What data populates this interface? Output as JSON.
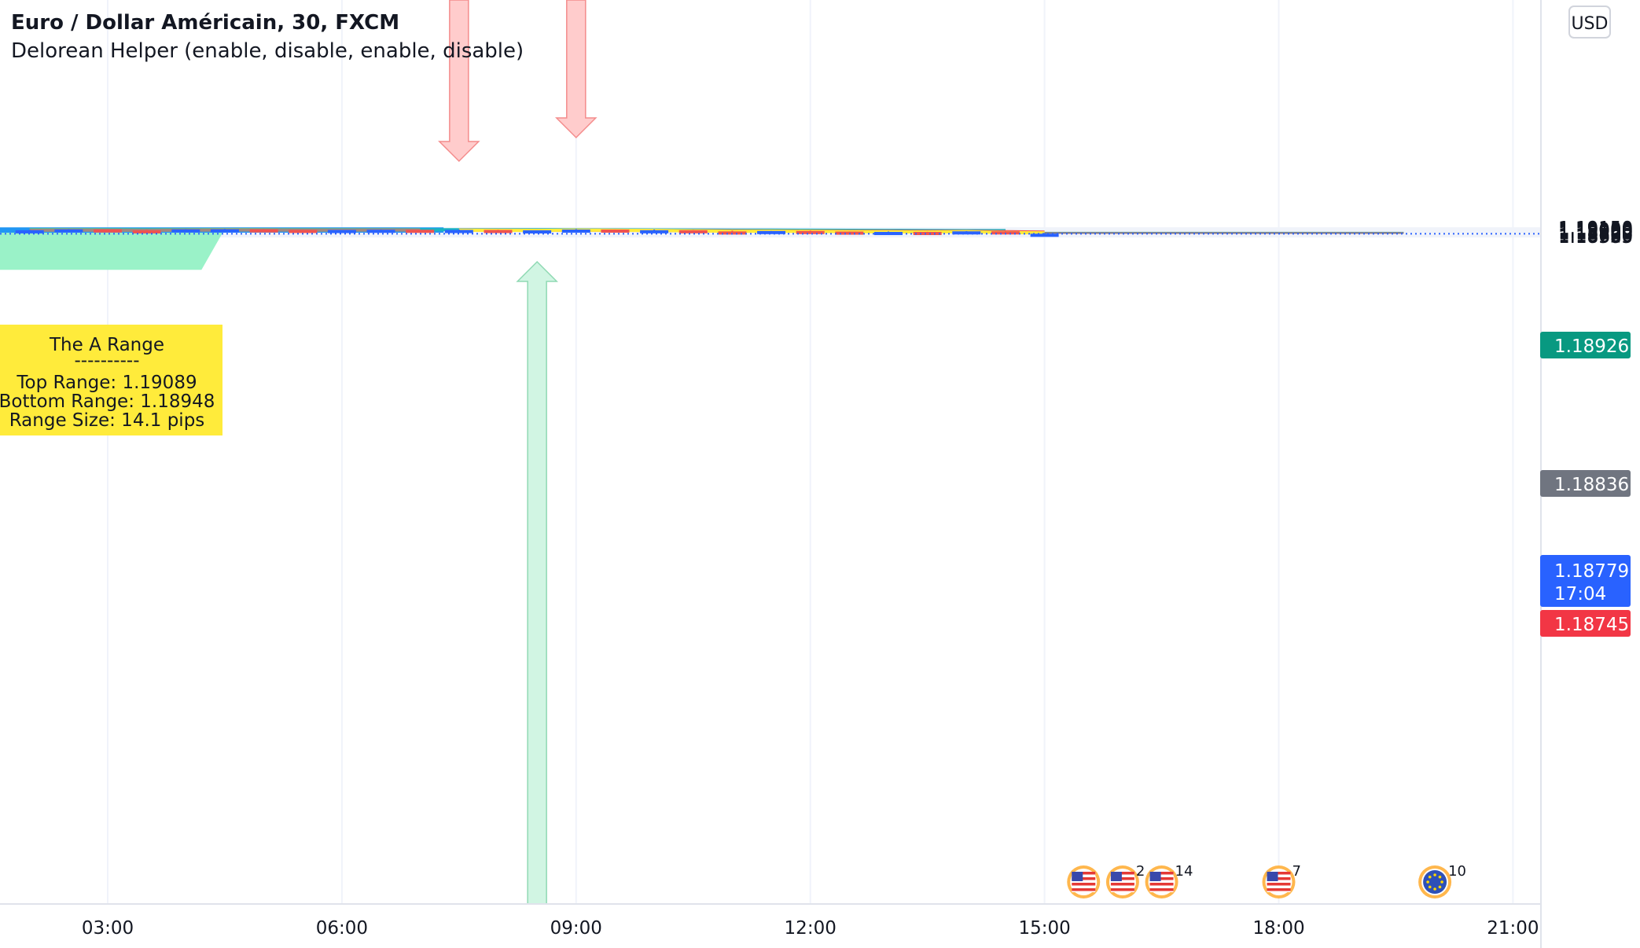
{
  "header": {
    "title": "Euro / Dollar Américain, 30, FXCM",
    "indicator": "Delorean Helper (enable, disable, enable, disable)"
  },
  "currency": "USD",
  "range_box": {
    "title": "The A Range",
    "separator": "----------",
    "top_label": "Top Range: 1.19089",
    "bottom_label": "Bottom Range: 1.18948",
    "size_label": "Range Size: 14.1 pips",
    "top": 1.19089,
    "bottom": 1.18948
  },
  "price_tags": {
    "target": "1.18926",
    "entry": "1.18836",
    "last_price": "1.18779",
    "countdown": "17:04",
    "stop": "1.18745"
  },
  "colors": {
    "bull": "#2962ff",
    "bear": "#ef5350",
    "range_fill": "#9af2c8",
    "range_line": "#2196f3",
    "ema_slow": "#1ab4c2",
    "ema_red": "#ef5350",
    "ema_yellow": "#ffeb3b",
    "ema_green": "#9ae665",
    "ema_brown": "#a1887f",
    "target_zone": "#cce9e7",
    "stop_zone": "#fdd7d7",
    "tag_target": "#089981",
    "tag_entry": "#707580",
    "tag_last": "#2962ff",
    "tag_stop": "#f23645",
    "label_yellow": "#ffeb3b"
  },
  "events": [
    {
      "icon": "us-flag-icon",
      "count": ""
    },
    {
      "icon": "us-flag-icon",
      "count": "2"
    },
    {
      "icon": "us-flag-icon",
      "count": "14"
    },
    {
      "icon": "us-flag-icon",
      "count": "7"
    },
    {
      "icon": "eu-flag-icon",
      "count": "10"
    }
  ],
  "chart_data": {
    "type": "candlestick",
    "symbol": "Euro / Dollar Américain",
    "interval": "30",
    "y_ticks": [
      "1.19150",
      "1.19100",
      "1.19050",
      "1.19000",
      "1.18950",
      "1.18900",
      "1.18860",
      "1.18820",
      "1.18700",
      "1.18660",
      "1.18620",
      "1.18585"
    ],
    "x_ticks": [
      "03:00",
      "06:00",
      "09:00",
      "12:00",
      "15:00",
      "18:00",
      "21:00"
    ],
    "candles": [
      {
        "time": "02:00",
        "open": 1.19,
        "high": 1.19028,
        "low": 1.18985,
        "close": 1.19005
      },
      {
        "time": "02:30",
        "open": 1.19003,
        "high": 1.19067,
        "low": 1.18982,
        "close": 1.1906
      },
      {
        "time": "03:00",
        "open": 1.1906,
        "high": 1.19067,
        "low": 1.1899,
        "close": 1.19003
      },
      {
        "time": "03:30",
        "open": 1.19003,
        "high": 1.19025,
        "low": 1.18965,
        "close": 1.18991
      },
      {
        "time": "04:00",
        "open": 1.18991,
        "high": 1.19065,
        "low": 1.18983,
        "close": 1.1906
      },
      {
        "time": "04:30",
        "open": 1.19061,
        "high": 1.19089,
        "low": 1.1905,
        "close": 1.19065
      },
      {
        "time": "05:00",
        "open": 1.19065,
        "high": 1.19067,
        "low": 1.1902,
        "close": 1.1903
      },
      {
        "time": "05:30",
        "open": 1.19029,
        "high": 1.19029,
        "low": 1.18979,
        "close": 1.18998
      },
      {
        "time": "06:00",
        "open": 1.18998,
        "high": 1.19024,
        "low": 1.18987,
        "close": 1.19024
      },
      {
        "time": "06:30",
        "open": 1.19024,
        "high": 1.19045,
        "low": 1.19009,
        "close": 1.19037
      },
      {
        "time": "07:00",
        "open": 1.19037,
        "high": 1.19042,
        "low": 1.18993,
        "close": 1.18996
      },
      {
        "time": "07:30",
        "open": 1.18997,
        "high": 1.1905,
        "low": 1.18997,
        "close": 1.19025
      },
      {
        "time": "08:00",
        "open": 1.19025,
        "high": 1.19038,
        "low": 1.18958,
        "close": 1.18958
      },
      {
        "time": "08:30",
        "open": 1.18958,
        "high": 1.19,
        "low": 1.18943,
        "close": 1.19
      },
      {
        "time": "09:00",
        "open": 1.19,
        "high": 1.1908,
        "low": 1.18985,
        "close": 1.1905
      },
      {
        "time": "09:30",
        "open": 1.1905,
        "high": 1.19052,
        "low": 1.18948,
        "close": 1.18948
      },
      {
        "time": "10:00",
        "open": 1.18948,
        "high": 1.1905,
        "low": 1.18924,
        "close": 1.19007
      },
      {
        "time": "10:30",
        "open": 1.19007,
        "high": 1.19011,
        "low": 1.1886,
        "close": 1.1893
      },
      {
        "time": "11:00",
        "open": 1.1893,
        "high": 1.1898,
        "low": 1.18855,
        "close": 1.1886
      },
      {
        "time": "11:30",
        "open": 1.1886,
        "high": 1.18957,
        "low": 1.1886,
        "close": 1.18957
      },
      {
        "time": "12:00",
        "open": 1.18957,
        "high": 1.1898,
        "low": 1.189,
        "close": 1.1892
      },
      {
        "time": "12:30",
        "open": 1.1892,
        "high": 1.18925,
        "low": 1.1883,
        "close": 1.18843
      },
      {
        "time": "13:00",
        "open": 1.18843,
        "high": 1.18924,
        "low": 1.18843,
        "close": 1.18896
      },
      {
        "time": "13:30",
        "open": 1.18896,
        "high": 1.18906,
        "low": 1.18823,
        "close": 1.18855
      },
      {
        "time": "14:00",
        "open": 1.18855,
        "high": 1.1895,
        "low": 1.18846,
        "close": 1.18936
      },
      {
        "time": "14:30",
        "open": 1.18936,
        "high": 1.18939,
        "low": 1.18765,
        "close": 1.18773
      },
      {
        "time": "15:00",
        "open": 1.18773,
        "high": 1.18821,
        "low": 1.18766,
        "close": 1.18779
      }
    ],
    "series": [
      {
        "values": [
          {
            "t": "02:00",
            "v": 1.19052
          },
          {
            "t": "02:30",
            "v": 1.19052
          },
          {
            "t": "03:00",
            "v": 1.1905
          },
          {
            "t": "03:30",
            "v": 1.19048
          },
          {
            "t": "04:00",
            "v": 1.19049
          },
          {
            "t": "04:30",
            "v": 1.19051
          },
          {
            "t": "05:00",
            "v": 1.19051
          },
          {
            "t": "05:30",
            "v": 1.19048
          },
          {
            "t": "06:00",
            "v": 1.19047
          },
          {
            "t": "06:30",
            "v": 1.19046
          },
          {
            "t": "07:00",
            "v": 1.19043
          },
          {
            "t": "07:30",
            "v": 1.19042
          },
          {
            "t": "08:00",
            "v": 1.19038
          },
          {
            "t": "08:30",
            "v": 1.19034
          },
          {
            "t": "09:00",
            "v": 1.19035
          },
          {
            "t": "09:30",
            "v": 1.19032
          },
          {
            "t": "10:00",
            "v": 1.19027
          },
          {
            "t": "10:30",
            "v": 1.19023
          },
          {
            "t": "11:00",
            "v": 1.19016
          },
          {
            "t": "11:30",
            "v": 1.19013
          },
          {
            "t": "12:00",
            "v": 1.19006
          },
          {
            "t": "12:30",
            "v": 1.19001
          },
          {
            "t": "13:00",
            "v": 1.18993
          },
          {
            "t": "13:30",
            "v": 1.1899
          },
          {
            "t": "14:00",
            "v": 1.1898
          },
          {
            "t": "14:30",
            "v": 1.1898
          }
        ]
      },
      {
        "values": [
          {
            "t": "07:30",
            "v": 1.19008
          },
          {
            "t": "08:00",
            "v": 1.19005
          },
          {
            "t": "08:30",
            "v": 1.19002
          },
          {
            "t": "09:00",
            "v": 1.19007
          },
          {
            "t": "09:30",
            "v": 1.19007
          },
          {
            "t": "10:00",
            "v": 1.1899
          },
          {
            "t": "10:30",
            "v": 1.18975
          },
          {
            "t": "11:00",
            "v": 1.18958
          },
          {
            "t": "11:30",
            "v": 1.18955
          },
          {
            "t": "12:00",
            "v": 1.18949
          },
          {
            "t": "12:30",
            "v": 1.18938
          },
          {
            "t": "13:00",
            "v": 1.18934
          },
          {
            "t": "13:30",
            "v": 1.18928
          },
          {
            "t": "14:00",
            "v": 1.18929
          },
          {
            "t": "14:30",
            "v": 1.1891
          },
          {
            "t": "15:00",
            "v": 1.1889
          }
        ]
      },
      {
        "values": [
          {
            "t": "07:30",
            "v": 1.19004
          },
          {
            "t": "08:00",
            "v": 1.19
          },
          {
            "t": "08:30",
            "v": 1.18995
          },
          {
            "t": "09:00",
            "v": 1.19008
          },
          {
            "t": "09:30",
            "v": 1.19002
          },
          {
            "t": "10:00",
            "v": 1.18995
          },
          {
            "t": "10:30",
            "v": 1.18963
          },
          {
            "t": "11:00",
            "v": 1.18935
          },
          {
            "t": "11:30",
            "v": 1.18945
          },
          {
            "t": "12:00",
            "v": 1.1893
          },
          {
            "t": "12:30",
            "v": 1.18907
          },
          {
            "t": "13:00",
            "v": 1.18903
          },
          {
            "t": "13:30",
            "v": 1.18891
          },
          {
            "t": "14:00",
            "v": 1.1891
          },
          {
            "t": "14:30",
            "v": 1.18852
          },
          {
            "t": "15:00",
            "v": 1.18832
          }
        ]
      },
      {
        "values": [
          {
            "t": "02:00",
            "v": 1.1901
          },
          {
            "t": "02:30",
            "v": 1.19025
          },
          {
            "t": "03:00",
            "v": 1.19013
          },
          {
            "t": "03:30",
            "v": 1.19003
          },
          {
            "t": "04:00",
            "v": 1.19023
          },
          {
            "t": "04:30",
            "v": 1.19035
          },
          {
            "t": "05:00",
            "v": 1.19032
          },
          {
            "t": "05:30",
            "v": 1.1902
          },
          {
            "t": "06:00",
            "v": 1.1902
          },
          {
            "t": "06:30",
            "v": 1.19026
          },
          {
            "t": "07:00",
            "v": 1.1902
          }
        ]
      },
      {
        "values": [
          {
            "t": "02:00",
            "v": 1.19
          },
          {
            "t": "02:30",
            "v": 1.19012
          },
          {
            "t": "03:00",
            "v": 1.19006
          },
          {
            "t": "03:30",
            "v": 1.19001
          },
          {
            "t": "04:00",
            "v": 1.19012
          },
          {
            "t": "04:30",
            "v": 1.19018
          },
          {
            "t": "05:00",
            "v": 1.19019
          },
          {
            "t": "05:30",
            "v": 1.19016
          },
          {
            "t": "06:00",
            "v": 1.19016
          },
          {
            "t": "06:30",
            "v": 1.19018
          },
          {
            "t": "07:00",
            "v": 1.19016
          }
        ]
      }
    ],
    "signals": [
      {
        "type": "sell",
        "time": "07:30"
      },
      {
        "type": "buy",
        "time": "08:30"
      },
      {
        "type": "sell",
        "time": "09:00"
      }
    ],
    "position": {
      "start": "15:00",
      "end": "19:30",
      "target": 1.18926,
      "entry": 1.18836,
      "stop": 1.18745
    },
    "last_price": 1.18779,
    "events": [
      {
        "time": "15:30",
        "count": ""
      },
      {
        "time": "16:00",
        "count": "2"
      },
      {
        "time": "16:30",
        "count": "14"
      },
      {
        "time": "18:00",
        "count": "7"
      },
      {
        "time": "20:00",
        "count": "10"
      }
    ]
  }
}
